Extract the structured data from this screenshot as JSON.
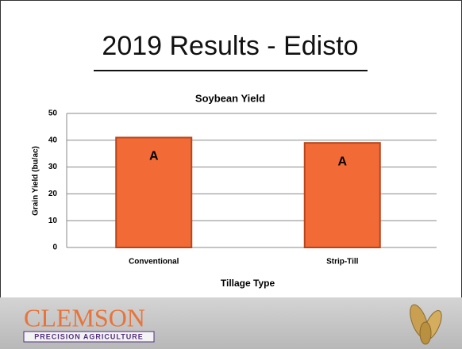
{
  "slide": {
    "title": "2019 Results - Edisto"
  },
  "chart_data": {
    "type": "bar",
    "title": "Soybean Yield",
    "x_label": "Tillage Type",
    "y_label": "Grain Yield (bu/ac)",
    "categories": [
      "Conventional",
      "Strip-Till"
    ],
    "values": [
      41,
      39
    ],
    "annotations": [
      "A",
      "A"
    ],
    "color": "#f26b36",
    "ylim": [
      0,
      50
    ],
    "yticks": [
      0,
      10,
      20,
      30,
      40,
      50
    ],
    "grid": true
  },
  "footer": {
    "logo": "CLEMSON",
    "tagline": "PRECISION AGRICULTURE"
  }
}
